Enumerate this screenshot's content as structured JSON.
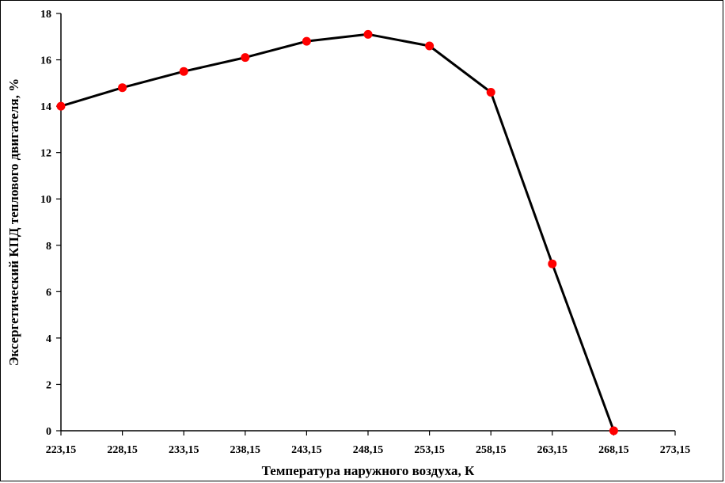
{
  "chart_data": {
    "type": "line",
    "xlabel": "Температура наружного воздуха, К",
    "ylabel": "Эксергетический КПД теплового двигателя, %",
    "xlim": [
      223.15,
      273.15
    ],
    "ylim": [
      0,
      18
    ],
    "x_ticks": [
      "223,15",
      "228,15",
      "233,15",
      "238,15",
      "243,15",
      "248,15",
      "253,15",
      "258,15",
      "263,15",
      "268,15",
      "273,15"
    ],
    "y_ticks": [
      "0",
      "2",
      "4",
      "6",
      "8",
      "10",
      "12",
      "14",
      "16",
      "18"
    ],
    "grid": false,
    "series": [
      {
        "x": [
          223.15,
          228.15,
          233.15,
          238.15,
          243.15,
          248.15,
          253.15,
          258.15,
          263.15,
          268.15
        ],
        "y": [
          14.0,
          14.8,
          15.5,
          16.1,
          16.8,
          17.1,
          16.6,
          14.6,
          7.2,
          0.0
        ],
        "line_color": "#000000",
        "marker_color": "#ff0000"
      }
    ]
  }
}
